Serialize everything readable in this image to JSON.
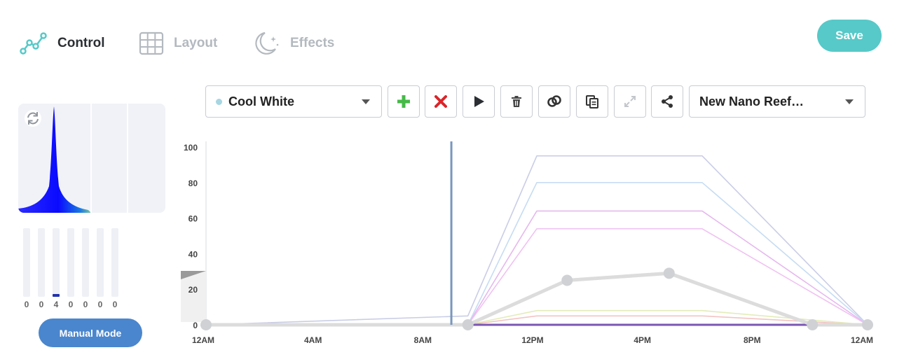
{
  "nav": {
    "tabs": [
      {
        "label": "Control",
        "icon": "chart-line-icon",
        "active": true
      },
      {
        "label": "Layout",
        "icon": "grid-icon",
        "active": false
      },
      {
        "label": "Effects",
        "icon": "moon-stars-icon",
        "active": false
      }
    ],
    "save_label": "Save"
  },
  "colors": {
    "accent": "#56c9c8",
    "primary_button": "#4a86cd",
    "spectrum_blue": "#1a1aff",
    "selected_line": "#7a96bd"
  },
  "channels": {
    "values": [
      "0",
      "0",
      "4",
      "0",
      "0",
      "0",
      "0"
    ],
    "levels": [
      0,
      0,
      4,
      0,
      0,
      0,
      0
    ]
  },
  "manual_mode_label": "Manual Mode",
  "toolbar": {
    "channel_select": {
      "value": "Cool White",
      "dot_color": "#a6d6e2"
    },
    "buttons": [
      {
        "name": "add-point-button",
        "icon": "plus-icon"
      },
      {
        "name": "delete-point-button",
        "icon": "x-icon"
      },
      {
        "name": "play-button",
        "icon": "play-icon"
      },
      {
        "name": "trash-button",
        "icon": "trash-icon"
      },
      {
        "name": "link-button",
        "icon": "link-icon"
      },
      {
        "name": "copy-button",
        "icon": "copy-icon"
      },
      {
        "name": "expand-button",
        "icon": "expand-icon"
      },
      {
        "name": "share-button",
        "icon": "share-icon"
      }
    ],
    "preset_select": {
      "value": "New Nano Reef…"
    }
  },
  "chart_data": {
    "type": "line",
    "x_ticks": [
      "12AM",
      "4AM",
      "8AM",
      "12PM",
      "4PM",
      "8PM",
      "12AM"
    ],
    "y_ticks": [
      "100",
      "80",
      "60",
      "40",
      "20",
      "0"
    ],
    "xlim": [
      0,
      24
    ],
    "ylim": [
      0,
      100
    ],
    "current_time": 8.9,
    "series": [
      {
        "color": "#c9cde6",
        "points": [
          [
            0,
            0
          ],
          [
            9.5,
            5
          ],
          [
            12,
            95
          ],
          [
            18,
            95
          ],
          [
            24,
            0
          ]
        ]
      },
      {
        "color": "#c6dcf3",
        "points": [
          [
            0,
            0
          ],
          [
            9.5,
            0
          ],
          [
            12,
            80
          ],
          [
            18,
            80
          ],
          [
            24,
            0
          ]
        ]
      },
      {
        "color": "#e6b8ee",
        "points": [
          [
            0,
            0
          ],
          [
            9.5,
            0
          ],
          [
            12,
            64
          ],
          [
            18,
            64
          ],
          [
            24,
            0
          ]
        ]
      },
      {
        "color": "#f0c2f2",
        "points": [
          [
            0,
            0
          ],
          [
            9.5,
            0
          ],
          [
            12,
            54
          ],
          [
            18,
            54
          ],
          [
            24,
            0
          ]
        ]
      },
      {
        "color": "#e3ecb8",
        "points": [
          [
            0,
            0
          ],
          [
            9.5,
            0
          ],
          [
            12,
            8
          ],
          [
            18,
            8
          ],
          [
            24,
            0
          ]
        ]
      },
      {
        "color": "#f3c3c3",
        "points": [
          [
            0,
            0
          ],
          [
            9.5,
            0
          ],
          [
            12,
            5
          ],
          [
            18,
            5
          ],
          [
            24,
            0
          ]
        ]
      },
      {
        "color": "#7a57b3",
        "points": [
          [
            0,
            0
          ],
          [
            9.5,
            0
          ],
          [
            22,
            0
          ],
          [
            24,
            0
          ]
        ]
      },
      {
        "color": "#dcdcdc",
        "selected": true,
        "points": [
          [
            0,
            0
          ],
          [
            9.5,
            0
          ],
          [
            13.1,
            25
          ],
          [
            16.8,
            29
          ],
          [
            22,
            0
          ],
          [
            24,
            0
          ]
        ]
      }
    ]
  }
}
